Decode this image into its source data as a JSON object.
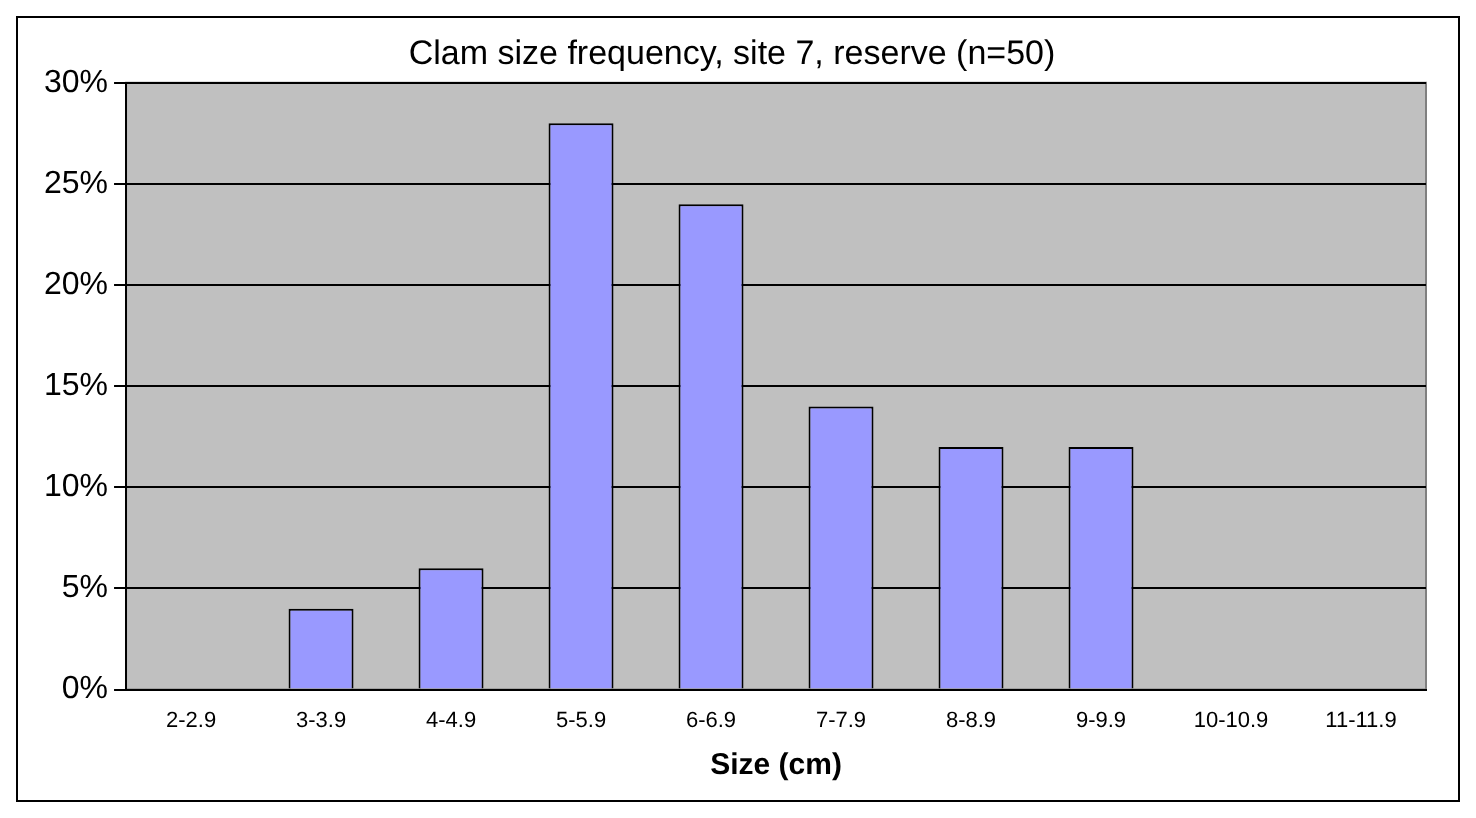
{
  "chart_data": {
    "type": "bar",
    "title": "Clam size frequency, site 7, reserve (n=50)",
    "xlabel": "Size (cm)",
    "categories": [
      "2-2.9",
      "3-3.9",
      "4-4.9",
      "5-5.9",
      "6-6.9",
      "7-7.9",
      "8-8.9",
      "9-9.9",
      "10-10.9",
      "11-11.9"
    ],
    "values": [
      0,
      4,
      6,
      28,
      24,
      14,
      12,
      12,
      0,
      0
    ],
    "color": "#9999ff",
    "ylim": [
      0,
      30
    ],
    "yticks": [
      {
        "value": 0,
        "label": "0%"
      },
      {
        "value": 5,
        "label": "5%"
      },
      {
        "value": 10,
        "label": "10%"
      },
      {
        "value": 15,
        "label": "15%"
      },
      {
        "value": 20,
        "label": "20%"
      },
      {
        "value": 25,
        "label": "25%"
      },
      {
        "value": 30,
        "label": "30%"
      }
    ],
    "grid": "y",
    "legend": false
  }
}
